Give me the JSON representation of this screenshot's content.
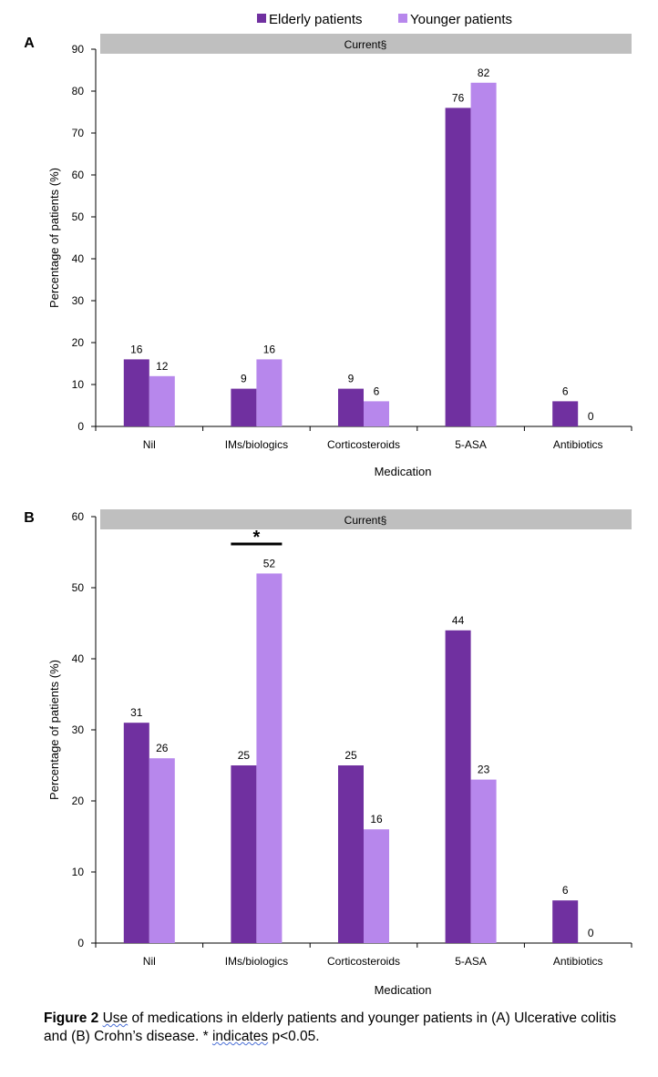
{
  "legend": [
    {
      "label": "Elderly patients",
      "color": "#7030a0"
    },
    {
      "label": "Younger patients",
      "color": "#b787ec"
    }
  ],
  "chart_data": [
    {
      "type": "bar",
      "panel_label": "A",
      "band_label": "Current§",
      "ylabel": "Percentage of patients (%)",
      "xlabel": "Medication",
      "ylim": [
        0,
        90
      ],
      "yticks": [
        0,
        10,
        20,
        30,
        40,
        50,
        60,
        70,
        80,
        90
      ],
      "categories": [
        "Nil",
        "IMs/biologics",
        "Corticosteroids",
        "5-ASA",
        "Antibiotics"
      ],
      "series": [
        {
          "name": "Elderly patients",
          "color": "#7030a0",
          "values": [
            16,
            9,
            9,
            76,
            6
          ]
        },
        {
          "name": "Younger patients",
          "color": "#b787ec",
          "values": [
            12,
            16,
            6,
            82,
            0
          ]
        }
      ],
      "grid": false,
      "legend_position": "top"
    },
    {
      "type": "bar",
      "panel_label": "B",
      "band_label": "Current§",
      "ylabel": "Percentage of patients (%)",
      "xlabel": "Medication",
      "ylim": [
        0,
        60
      ],
      "yticks": [
        0,
        10,
        20,
        30,
        40,
        50,
        60
      ],
      "categories": [
        "Nil",
        "IMs/biologics",
        "Corticosteroids",
        "5-ASA",
        "Antibiotics"
      ],
      "series": [
        {
          "name": "Elderly patients",
          "color": "#7030a0",
          "values": [
            31,
            25,
            25,
            44,
            6
          ]
        },
        {
          "name": "Younger patients",
          "color": "#b787ec",
          "values": [
            26,
            52,
            16,
            23,
            0
          ]
        }
      ],
      "significance": {
        "category": "IMs/biologics",
        "marker": "*"
      },
      "grid": false
    }
  ],
  "caption": {
    "figure_label": "Figure 2",
    "word_use": "Use",
    "text_1": " of medications in elderly patients and younger patients in (A) Ulcerative colitis and (B) Crohn’s disease. * ",
    "word_indicates": "indicates",
    "text_2": " p<0.05."
  }
}
